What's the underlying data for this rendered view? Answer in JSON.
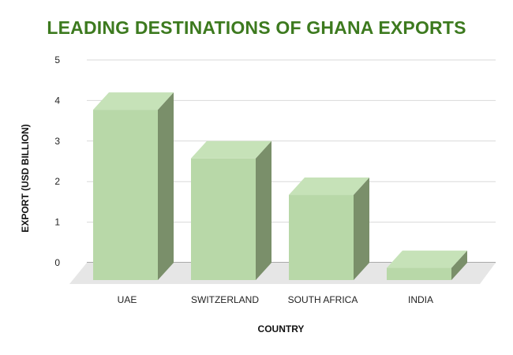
{
  "colors": {
    "title": "#3d7a1f",
    "bar_front": "#b8d8a8",
    "bar_top": "#c6e2b8",
    "bar_side": "#7a8f6a",
    "floor": "#e6e6e6",
    "gridline": "#d9d9d9"
  },
  "chart_data": {
    "type": "bar",
    "title": "LEADING DESTINATIONS OF GHANA EXPORTS",
    "xlabel": "COUNTRY",
    "ylabel": "EXPORT (USD BILLION)",
    "categories": [
      "UAE",
      "SWITZERLAND",
      "SOUTH AFRICA",
      "INDIA"
    ],
    "values": [
      4.2,
      3.0,
      2.1,
      0.3
    ],
    "ylim": [
      0,
      5
    ],
    "yticks": [
      "0",
      "1",
      "2",
      "3",
      "4",
      "5"
    ],
    "grid": true,
    "style": "3d"
  }
}
